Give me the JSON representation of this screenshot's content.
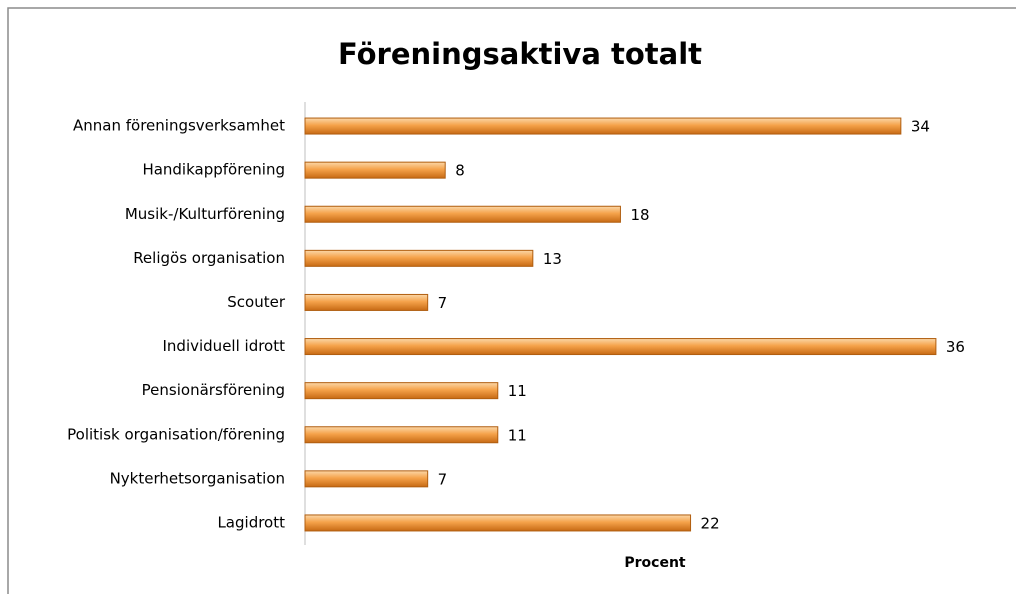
{
  "chart_data": {
    "type": "bar",
    "orientation": "horizontal",
    "title": "Föreningsaktiva totalt",
    "x_label": "Procent",
    "categories": [
      "Annan föreningsverksamhet",
      "Handikappförening",
      "Musik-/Kulturförening",
      "Religös organisation",
      "Scouter",
      "Individuell idrott",
      "Pensionärsförening",
      "Politisk organisation/förening",
      "Nykterhetsorganisation",
      "Lagidrott"
    ],
    "values": [
      34,
      8,
      18,
      13,
      7,
      36,
      11,
      11,
      7,
      22
    ],
    "color": "#f39c3a",
    "xlim": [
      0,
      40
    ],
    "grid": false
  }
}
